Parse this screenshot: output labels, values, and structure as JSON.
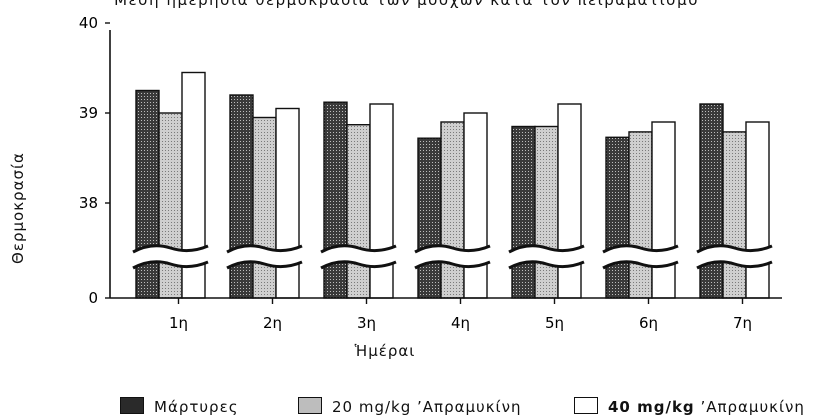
{
  "chart_data": {
    "type": "bar",
    "title": "Μέση ημερήσια θερμοκρασία των μόσχων κατά τον πειραματισμό",
    "xlabel": "Ἡμέραι",
    "ylabel": "Θερμοκρασία",
    "categories": [
      "1η",
      "2η",
      "3η",
      "4η",
      "5η",
      "6η",
      "7η"
    ],
    "yticks": [
      "0",
      "38",
      "39",
      "40"
    ],
    "axis_break": true,
    "ylim": [
      37.6,
      40
    ],
    "series": [
      {
        "name": "Μάρτυρες",
        "color": "#2a2a2a",
        "values": [
          39.25,
          39.2,
          39.12,
          38.72,
          38.85,
          38.73,
          39.1
        ]
      },
      {
        "name": "20 mg/kg ’Απραμυκίνη",
        "color": "#bdbdbd",
        "values": [
          39.0,
          38.95,
          38.87,
          38.9,
          38.85,
          38.79,
          38.79
        ]
      },
      {
        "name": "40 mg/kg ’Απραμυκίνη",
        "color": "#ffffff",
        "values": [
          39.45,
          39.05,
          39.1,
          39.0,
          39.1,
          38.9,
          38.9
        ]
      }
    ]
  },
  "legend": {
    "items": [
      {
        "text": "Μάρτυρες"
      },
      {
        "text": "20  mg/kg ’Απραμυκίνη"
      },
      {
        "dose": "40 mg/kg",
        "text": "’Απραμυκίνη"
      }
    ]
  }
}
